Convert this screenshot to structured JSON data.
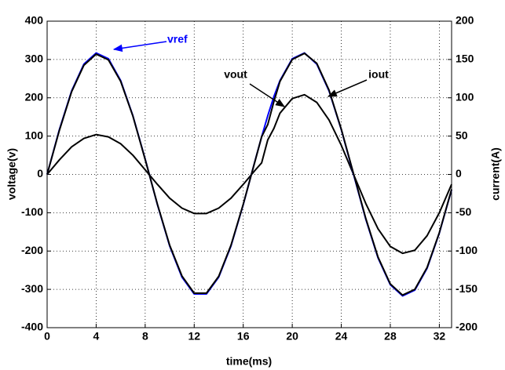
{
  "chart_data": {
    "type": "line",
    "xlabel": "time(ms)",
    "ylabel": "voltage(v)",
    "y2label": "current(A)",
    "x": [
      0,
      1,
      2,
      3,
      4,
      5,
      6,
      7,
      8,
      9,
      10,
      11,
      12,
      13,
      14,
      15,
      16,
      17,
      17.5,
      18,
      18.5,
      19,
      20,
      21,
      22,
      23,
      24,
      25,
      26,
      27,
      28,
      29,
      30,
      31,
      32,
      33
    ],
    "series": [
      {
        "name": "vref",
        "color": "#0000ff",
        "axis": "y",
        "values": [
          0,
          117,
          218,
          288,
          317,
          302,
          245,
          153,
          40,
          -79,
          -187,
          -268,
          -312,
          -312,
          -268,
          -187,
          -79,
          40,
          98,
          153,
          203,
          245,
          302,
          317,
          288,
          218,
          117,
          0,
          -117,
          -218,
          -288,
          -317,
          -302,
          -245,
          -153,
          -40
        ]
      },
      {
        "name": "vout",
        "color": "#000000",
        "axis": "y",
        "values": [
          0,
          115,
          216,
          285,
          314,
          299,
          243,
          152,
          39,
          -78,
          -185,
          -265,
          -310,
          -310,
          -266,
          -185,
          -78,
          39,
          98,
          130,
          190,
          243,
          300,
          316,
          290,
          220,
          118,
          2,
          -115,
          -216,
          -286,
          -315,
          -300,
          -243,
          -152,
          -39
        ]
      },
      {
        "name": "iout",
        "color": "#000000",
        "axis": "y2",
        "values": [
          0,
          19,
          36,
          47,
          52,
          49,
          40,
          25,
          6,
          -13,
          -31,
          -44,
          -51,
          -51,
          -44,
          -31,
          -13,
          6,
          15,
          45,
          60,
          80,
          99,
          104,
          94,
          71,
          38,
          0,
          -38,
          -71,
          -94,
          -103,
          -99,
          -80,
          -50,
          -13
        ]
      }
    ],
    "xlim": [
      0,
      33
    ],
    "xticks": [
      0,
      4,
      8,
      12,
      16,
      20,
      24,
      28,
      32
    ],
    "ylim": [
      -400,
      400
    ],
    "yticks": [
      -400,
      -300,
      -200,
      -100,
      0,
      100,
      200,
      300,
      400
    ],
    "y2lim": [
      -200,
      200
    ],
    "y2ticks": [
      -200,
      -150,
      -100,
      -50,
      0,
      50,
      100,
      150,
      200
    ],
    "grid": true
  }
}
